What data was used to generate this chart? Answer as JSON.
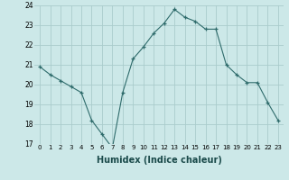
{
  "x": [
    0,
    1,
    2,
    3,
    4,
    5,
    6,
    7,
    8,
    9,
    10,
    11,
    12,
    13,
    14,
    15,
    16,
    17,
    18,
    19,
    20,
    21,
    22,
    23
  ],
  "y": [
    20.9,
    20.5,
    20.2,
    19.9,
    19.6,
    18.2,
    17.5,
    16.8,
    19.6,
    21.3,
    21.9,
    22.6,
    23.1,
    23.8,
    23.4,
    23.2,
    22.8,
    22.8,
    21.0,
    20.5,
    20.1,
    20.1,
    19.1,
    18.2
  ],
  "line_color": "#2e6b6b",
  "marker": "+",
  "bg_color": "#cce8e8",
  "grid_color": "#aacccc",
  "xlabel": "Humidex (Indice chaleur)",
  "ylim": [
    17,
    24
  ],
  "xlim": [
    -0.5,
    23.5
  ],
  "yticks": [
    17,
    18,
    19,
    20,
    21,
    22,
    23,
    24
  ],
  "xticks": [
    0,
    1,
    2,
    3,
    4,
    5,
    6,
    7,
    8,
    9,
    10,
    11,
    12,
    13,
    14,
    15,
    16,
    17,
    18,
    19,
    20,
    21,
    22,
    23
  ],
  "xlabel_fontsize": 7,
  "tick_fontsize": 5,
  "ytick_fontsize": 5.5
}
